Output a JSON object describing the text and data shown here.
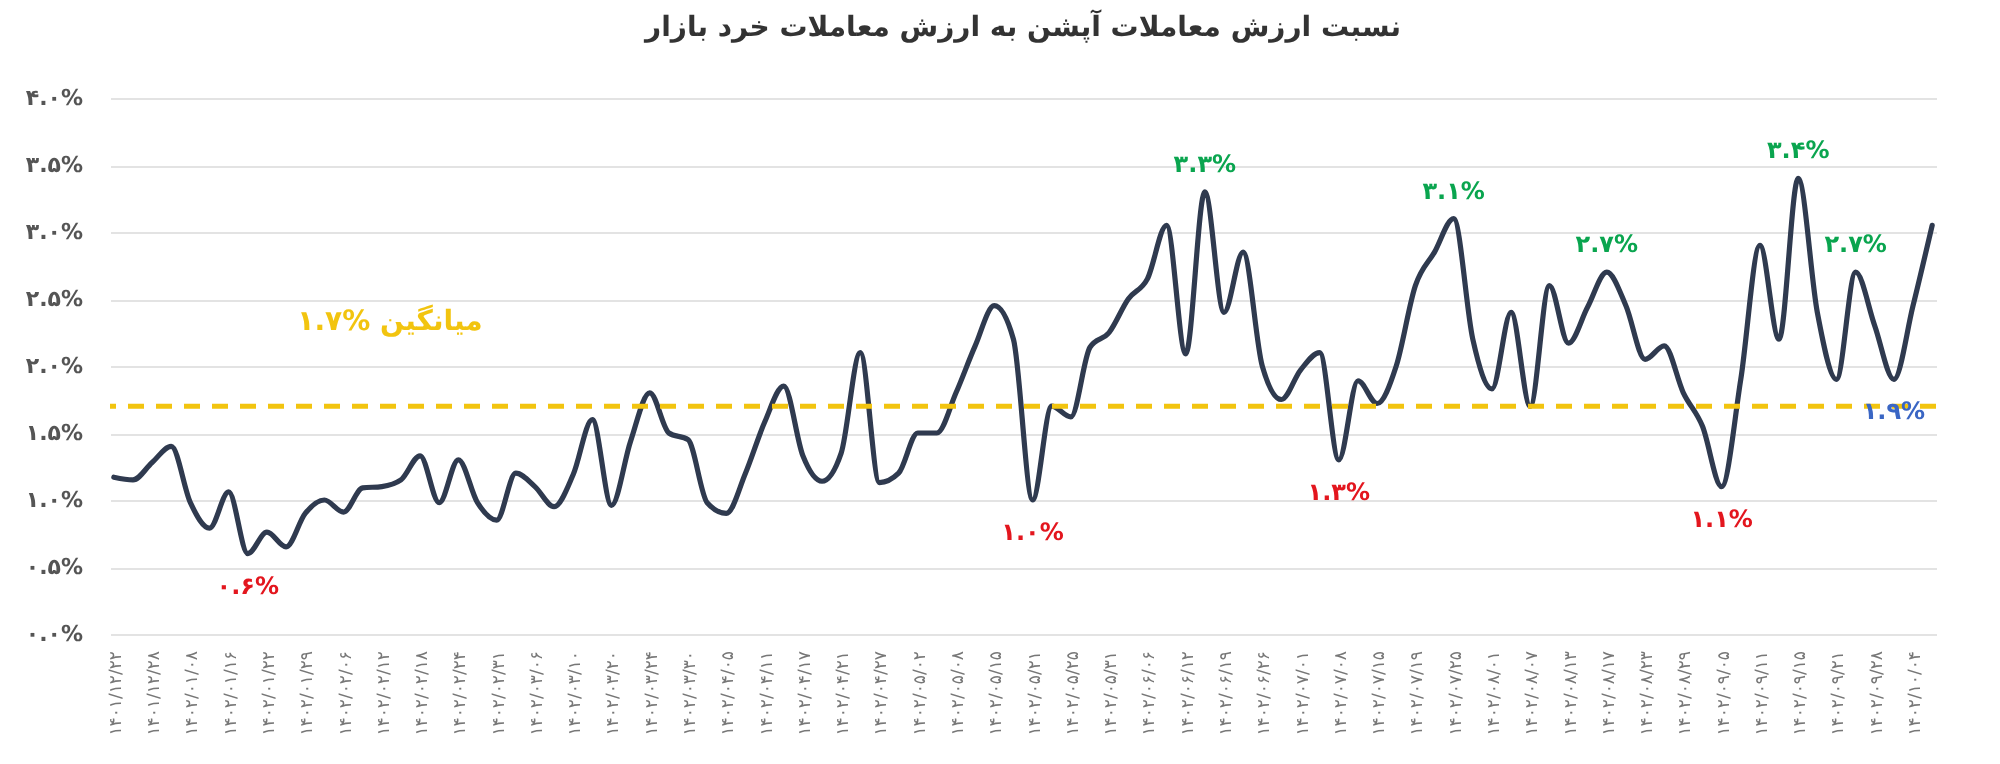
{
  "chart_data": {
    "type": "line",
    "title": "نسبت ارزش معاملات آپشن به ارزش معاملات خرد بازار",
    "categories": [
      "۱۴۰۱/۱۲/۲۲",
      null,
      "۱۴۰۱/۱۲/۲۸",
      null,
      "۱۴۰۲/۰۱/۰۸",
      null,
      "۱۴۰۲/۰۱/۱۶",
      null,
      "۱۴۰۲/۰۱/۲۲",
      null,
      "۱۴۰۲/۰۱/۲۹",
      null,
      "۱۴۰۲/۰۲/۰۶",
      null,
      "۱۴۰۲/۰۲/۱۲",
      null,
      "۱۴۰۲/۰۲/۱۸",
      null,
      "۱۴۰۲/۰۲/۲۴",
      null,
      "۱۴۰۲/۰۲/۳۱",
      null,
      "۱۴۰۲/۰۳/۰۶",
      null,
      "۱۴۰۲/۰۳/۱۰",
      null,
      "۱۴۰۲/۰۳/۲۰",
      null,
      "۱۴۰۲/۰۳/۲۴",
      null,
      "۱۴۰۲/۰۳/۳۰",
      null,
      "۱۴۰۲/۰۴/۰۵",
      null,
      "۱۴۰۲/۰۴/۱۱",
      null,
      "۱۴۰۲/۰۴/۱۷",
      null,
      "۱۴۰۲/۰۴/۲۱",
      null,
      "۱۴۰۲/۰۴/۲۷",
      null,
      "۱۴۰۲/۰۵/۰۲",
      null,
      "۱۴۰۲/۰۵/۰۸",
      null,
      "۱۴۰۲/۰۵/۱۵",
      null,
      "۱۴۰۲/۰۵/۲۱",
      null,
      "۱۴۰۲/۰۵/۲۵",
      null,
      "۱۴۰۲/۰۵/۳۱",
      null,
      "۱۴۰۲/۰۶/۰۶",
      null,
      "۱۴۰۲/۰۶/۱۲",
      null,
      "۱۴۰۲/۰۶/۱۹",
      null,
      "۱۴۰۲/۰۶/۲۶",
      null,
      "۱۴۰۲/۰۷/۰۱",
      null,
      "۱۴۰۲/۰۷/۰۸",
      null,
      "۱۴۰۲/۰۷/۱۵",
      null,
      "۱۴۰۲/۰۷/۱۹",
      null,
      "۱۴۰۲/۰۷/۲۵",
      null,
      "۱۴۰۲/۰۸/۰۱",
      null,
      "۱۴۰۲/۰۸/۰۷",
      null,
      "۱۴۰۲/۰۸/۱۳",
      null,
      "۱۴۰۲/۰۸/۱۷",
      null,
      "۱۴۰۲/۰۸/۲۳",
      null,
      "۱۴۰۲/۰۸/۲۹",
      null,
      "۱۴۰۲/۰۹/۰۵",
      null,
      "۱۴۰۲/۰۹/۱۱",
      null,
      "۱۴۰۲/۰۹/۱۵",
      null,
      "۱۴۰۲/۰۹/۲۱",
      null,
      "۱۴۰۲/۰۹/۲۸",
      null,
      "۱۴۰۲/۱۰/۰۴",
      null
    ],
    "series": [
      {
        "color": "#2f3a4f",
        "values": [
          1.17,
          1.15,
          1.28,
          1.4,
          0.98,
          0.79,
          1.06,
          0.6,
          0.76,
          0.65,
          0.9,
          1.0,
          0.91,
          1.09,
          1.1,
          1.15,
          1.33,
          0.98,
          1.3,
          0.98,
          0.85,
          1.2,
          1.1,
          0.95,
          1.19,
          1.6,
          0.96,
          1.44,
          1.8,
          1.5,
          1.45,
          0.98,
          0.9,
          1.2,
          1.58,
          1.85,
          1.33,
          1.14,
          1.35,
          2.1,
          1.13,
          1.2,
          1.5,
          1.5,
          1.8,
          2.15,
          2.45,
          2.2,
          1.0,
          1.7,
          1.62,
          2.14,
          2.25,
          2.5,
          2.65,
          3.05,
          2.09,
          3.3,
          2.4,
          2.85,
          2.0,
          1.75,
          1.97,
          2.1,
          1.3,
          1.89,
          1.72,
          2.0,
          2.6,
          2.85,
          3.1,
          2.2,
          1.83,
          2.4,
          1.7,
          2.6,
          2.17,
          2.44,
          2.7,
          2.45,
          2.05,
          2.15,
          1.8,
          1.55,
          1.1,
          1.9,
          2.9,
          2.2,
          3.4,
          2.4,
          1.9,
          2.7,
          2.3,
          1.9,
          2.45,
          3.05
        ],
        "value_labels": [
          null,
          null,
          null,
          null,
          null,
          null,
          null,
          "۰.۶%",
          null,
          null,
          null,
          null,
          null,
          null,
          null,
          null,
          null,
          null,
          null,
          null,
          null,
          null,
          null,
          null,
          null,
          null,
          null,
          null,
          null,
          null,
          null,
          null,
          null,
          null,
          null,
          null,
          null,
          null,
          null,
          null,
          null,
          null,
          null,
          null,
          null,
          null,
          null,
          null,
          "۱.۰%",
          null,
          null,
          null,
          null,
          null,
          null,
          null,
          null,
          "۳.۳%",
          null,
          null,
          null,
          null,
          null,
          null,
          "۱.۳%",
          null,
          null,
          null,
          null,
          null,
          "۳.۱%",
          null,
          null,
          null,
          null,
          null,
          null,
          null,
          "۲.۷%",
          null,
          null,
          null,
          null,
          null,
          "۱.۱%",
          null,
          null,
          null,
          "۳.۴%",
          null,
          null,
          "۲.۷%",
          null,
          "۱.۹%",
          null,
          null
        ]
      }
    ],
    "ylim": [
      0,
      4
    ],
    "yticks": [
      {
        "value": 0,
        "label": "۰.۰%"
      },
      {
        "value": 0.5,
        "label": "۰.۵%"
      },
      {
        "value": 1,
        "label": "۱.۰%"
      },
      {
        "value": 1.5,
        "label": "۱.۵%"
      },
      {
        "value": 2,
        "label": "۲.۰%"
      },
      {
        "value": 2.5,
        "label": "۲.۵%"
      },
      {
        "value": 3,
        "label": "۳.۰%"
      },
      {
        "value": 3.5,
        "label": "۳.۵%"
      },
      {
        "value": 4,
        "label": "۴.۰%"
      }
    ],
    "grid": "y",
    "line_style": "solid",
    "ref_lines": [
      {
        "axis": "y",
        "value": 1.7,
        "label": "۱.۷% میانگین",
        "color": "#f2c40f",
        "line_style": "dashed"
      }
    ]
  }
}
